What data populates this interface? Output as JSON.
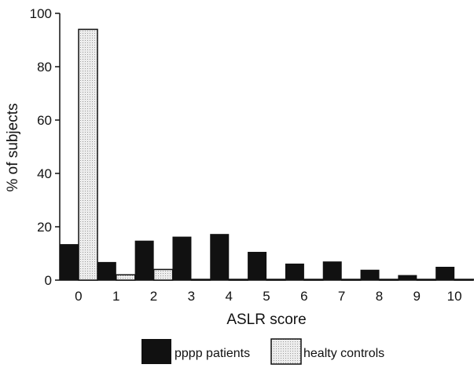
{
  "chart_data": {
    "type": "bar",
    "title": "",
    "xlabel": "ASLR score",
    "ylabel": "% of subjects",
    "categories": [
      "0",
      "1",
      "2",
      "3",
      "4",
      "5",
      "6",
      "7",
      "8",
      "9",
      "10"
    ],
    "ylim": [
      0,
      100
    ],
    "yticks": [
      0,
      20,
      40,
      60,
      80,
      100
    ],
    "grid": false,
    "legend": "bottom",
    "series": [
      {
        "name": "pppp patients",
        "color": "#111111",
        "values": [
          13.5,
          6.8,
          14.8,
          16.3,
          17.3,
          10.6,
          6.2,
          7.0,
          3.9,
          1.9,
          5.0
        ]
      },
      {
        "name": "healty controls",
        "color": "#e2e2e2",
        "values": [
          94,
          2,
          4,
          0.3,
          0.3,
          0.3,
          0.3,
          0.3,
          0.3,
          0.3,
          0.3
        ]
      }
    ]
  }
}
